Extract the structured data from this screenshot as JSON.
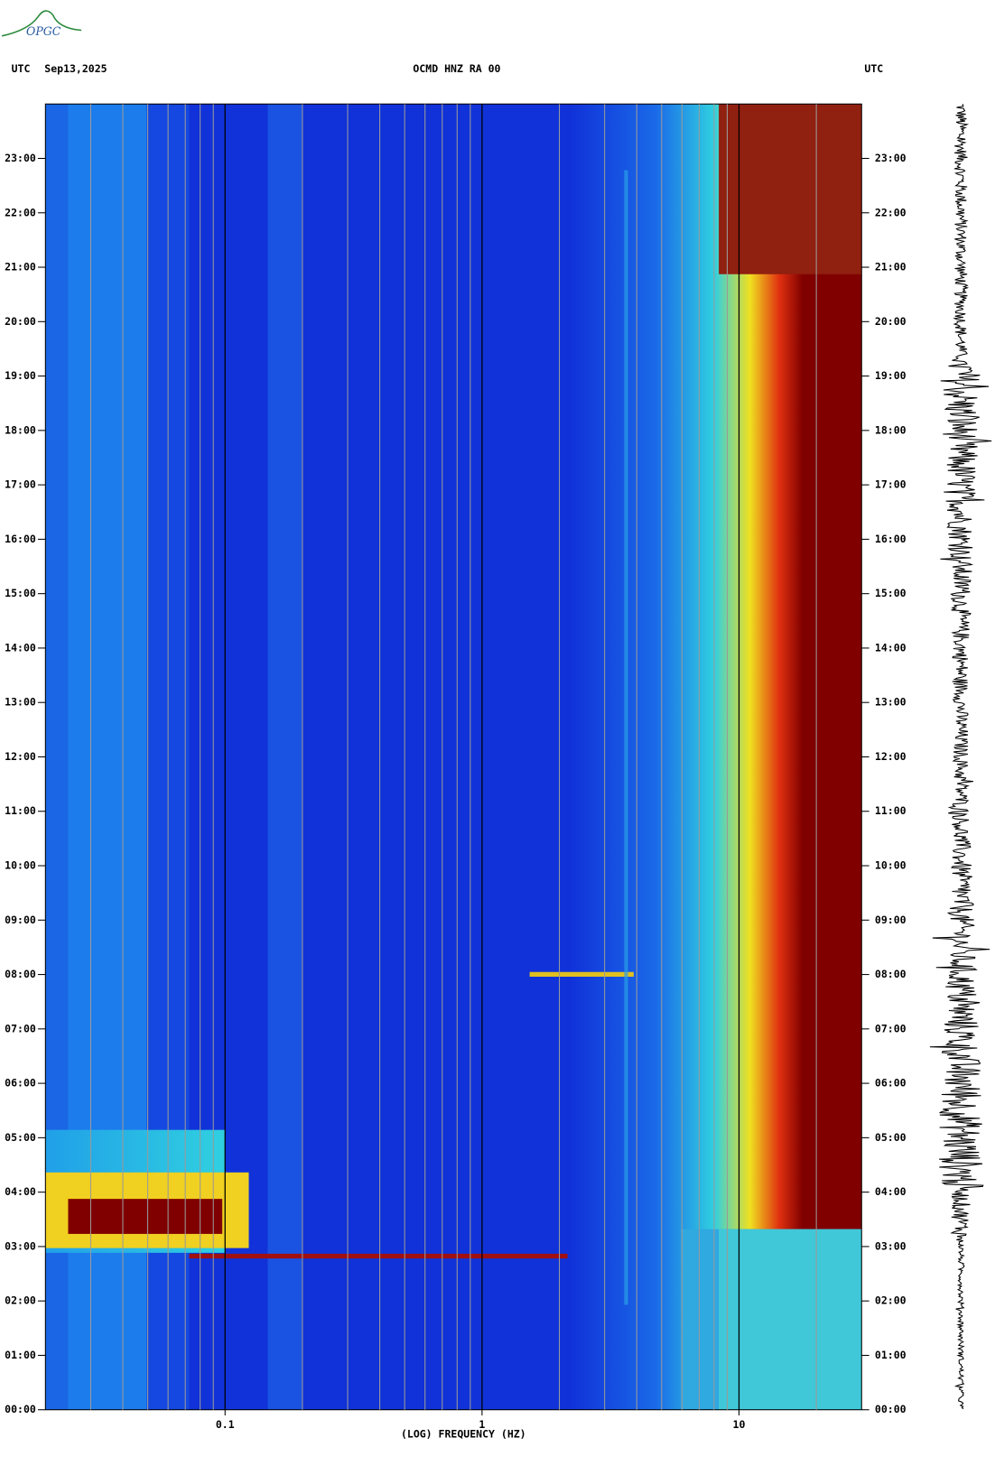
{
  "chart_data": {
    "type": "spectrogram",
    "logo": "OPGC",
    "time_zone": "UTC",
    "date": "Sep13,2025",
    "title": "OCMD HNZ RA 00",
    "x_label": "(LOG) FREQUENCY (HZ)",
    "x_log": true,
    "xlim": [
      0.02,
      30
    ],
    "xticks": [
      0.1,
      1,
      10
    ],
    "xgrid": [
      0.03,
      0.04,
      0.05,
      0.06,
      0.07,
      0.08,
      0.09,
      0.2,
      0.3,
      0.4,
      0.5,
      0.6,
      0.7,
      0.8,
      0.9,
      2,
      3,
      4,
      5,
      6,
      7,
      8,
      9,
      20
    ],
    "ylim": [
      0,
      24
    ],
    "yticks": [
      {
        "value": 0,
        "label": "00:00"
      },
      {
        "value": 1,
        "label": "01:00"
      },
      {
        "value": 2,
        "label": "02:00"
      },
      {
        "value": 3,
        "label": "03:00"
      },
      {
        "value": 4,
        "label": "04:00"
      },
      {
        "value": 5,
        "label": "05:00"
      },
      {
        "value": 6,
        "label": "06:00"
      },
      {
        "value": 7,
        "label": "07:00"
      },
      {
        "value": 8,
        "label": "08:00"
      },
      {
        "value": 9,
        "label": "09:00"
      },
      {
        "value": 10,
        "label": "10:00"
      },
      {
        "value": 11,
        "label": "11:00"
      },
      {
        "value": 12,
        "label": "12:00"
      },
      {
        "value": 13,
        "label": "13:00"
      },
      {
        "value": 14,
        "label": "14:00"
      },
      {
        "value": 15,
        "label": "15:00"
      },
      {
        "value": 16,
        "label": "16:00"
      },
      {
        "value": 17,
        "label": "17:00"
      },
      {
        "value": 18,
        "label": "18:00"
      },
      {
        "value": 19,
        "label": "19:00"
      },
      {
        "value": 20,
        "label": "20:00"
      },
      {
        "value": 21,
        "label": "21:00"
      },
      {
        "value": 22,
        "label": "22:00"
      },
      {
        "value": 23,
        "label": "23:00"
      }
    ]
  }
}
